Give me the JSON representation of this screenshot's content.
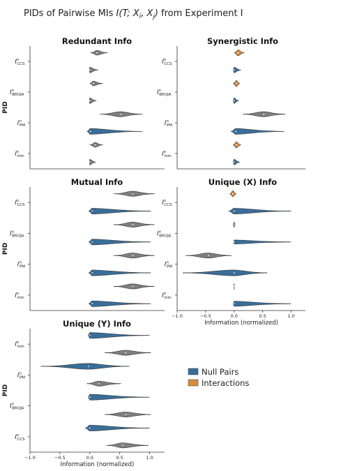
{
  "figure": {
    "title_prefix": "PIDs of Pairwise MIs ",
    "title_math": "I(T; X",
    "title_math_i": "i",
    "title_math_mid": ", X",
    "title_math_j": "j",
    "title_math_end": ")",
    "title_suffix": " from Experiment I"
  },
  "legend": {
    "position": "lower-right",
    "items": [
      {
        "label": "Null Pairs",
        "color": "#3a6e99"
      },
      {
        "label": "Interactions",
        "color": "#d98a3a"
      }
    ]
  },
  "colors": {
    "null": "#3a6e99",
    "interaction": "#d98a3a",
    "gray": "#7f7f7f",
    "axis": "#333333"
  },
  "chart_data": [
    {
      "type": "violin",
      "title": "Redundant Info",
      "ylabel": "PID",
      "xlabel": "",
      "xlim": [
        -1.0,
        1.25
      ],
      "xticks": [],
      "rows": [
        {
          "base": "I",
          "sup": "n",
          "sub": "CCS"
        },
        {
          "base": "I",
          "sup": "n",
          "sub": "BROJA"
        },
        {
          "base": "I",
          "sup": "n",
          "sub": "PM"
        },
        {
          "base": "I",
          "sup": "n",
          "sub": "min"
        }
      ],
      "violins": [
        {
          "row": 0,
          "offset": -1,
          "color": "gray",
          "center": 0.12,
          "min": 0.01,
          "max": 0.3,
          "width": 0.45
        },
        {
          "row": 0,
          "offset": 1,
          "color": "gray",
          "center": 0.0,
          "min": -0.01,
          "max": 0.14,
          "width": 0.7
        },
        {
          "row": 1,
          "offset": -1,
          "color": "gray",
          "center": 0.06,
          "min": 0.0,
          "max": 0.22,
          "width": 0.45
        },
        {
          "row": 1,
          "offset": 1,
          "color": "gray",
          "center": 0.0,
          "min": -0.01,
          "max": 0.11,
          "width": 0.7
        },
        {
          "row": 2,
          "offset": -1,
          "color": "gray",
          "center": 0.52,
          "min": 0.17,
          "max": 0.88,
          "width": 0.55
        },
        {
          "row": 2,
          "offset": 1,
          "color": "null",
          "center": 0.01,
          "min": -0.05,
          "max": 0.88,
          "width": 0.75
        },
        {
          "row": 3,
          "offset": -1,
          "color": "gray",
          "center": 0.09,
          "min": 0.0,
          "max": 0.22,
          "width": 0.45
        },
        {
          "row": 3,
          "offset": 1,
          "color": "gray",
          "center": 0.0,
          "min": -0.01,
          "max": 0.1,
          "width": 0.7
        }
      ]
    },
    {
      "type": "violin",
      "title": "Synergistic Info",
      "ylabel": "",
      "xlabel": "",
      "xlim": [
        -1.0,
        1.25
      ],
      "xticks": [],
      "rows": [
        {
          "base": "I",
          "sup": "n",
          "sub": "CCS"
        },
        {
          "base": "I",
          "sup": "n",
          "sub": "BROJA"
        },
        {
          "base": "I",
          "sup": "n",
          "sub": "PM"
        },
        {
          "base": "I",
          "sup": "n",
          "sub": "min"
        }
      ],
      "violins": [
        {
          "row": 0,
          "offset": -1,
          "color": "interaction",
          "center": 0.07,
          "min": 0.0,
          "max": 0.18,
          "width": 0.8
        },
        {
          "row": 0,
          "offset": 1,
          "color": "null",
          "center": 0.0,
          "min": -0.02,
          "max": 0.12,
          "width": 0.7
        },
        {
          "row": 1,
          "offset": -1,
          "color": "interaction",
          "center": 0.04,
          "min": -0.02,
          "max": 0.1,
          "width": 0.8
        },
        {
          "row": 1,
          "offset": 1,
          "color": "null",
          "center": 0.0,
          "min": -0.02,
          "max": 0.08,
          "width": 0.7
        },
        {
          "row": 2,
          "offset": -1,
          "color": "gray",
          "center": 0.52,
          "min": 0.15,
          "max": 0.9,
          "width": 0.55
        },
        {
          "row": 2,
          "offset": 1,
          "color": "null",
          "center": 0.03,
          "min": -0.06,
          "max": 0.88,
          "width": 0.75
        },
        {
          "row": 3,
          "offset": -1,
          "color": "interaction",
          "center": 0.04,
          "min": -0.02,
          "max": 0.12,
          "width": 0.8
        },
        {
          "row": 3,
          "offset": 1,
          "color": "null",
          "center": 0.0,
          "min": -0.02,
          "max": 0.1,
          "width": 0.7
        }
      ]
    },
    {
      "type": "violin",
      "title": "Mutual Info",
      "ylabel": "PID",
      "xlabel": "",
      "xlim": [
        -1.0,
        1.25
      ],
      "xticks": [],
      "rows": [
        {
          "base": "I",
          "sup": "n",
          "sub": "CCS"
        },
        {
          "base": "I",
          "sup": "n",
          "sub": "BROJA"
        },
        {
          "base": "I",
          "sup": "n",
          "sub": "PM"
        },
        {
          "base": "I",
          "sup": "n",
          "sub": "min"
        }
      ],
      "violins": [
        {
          "row": 0,
          "offset": -1,
          "color": "gray",
          "center": 0.72,
          "min": 0.4,
          "max": 1.08,
          "width": 0.55
        },
        {
          "row": 0,
          "offset": 1,
          "color": "null",
          "center": 0.04,
          "min": -0.02,
          "max": 1.02,
          "width": 0.75
        },
        {
          "row": 1,
          "offset": -1,
          "color": "gray",
          "center": 0.72,
          "min": 0.4,
          "max": 1.08,
          "width": 0.55
        },
        {
          "row": 1,
          "offset": 1,
          "color": "null",
          "center": 0.04,
          "min": -0.02,
          "max": 1.02,
          "width": 0.75
        },
        {
          "row": 2,
          "offset": -1,
          "color": "gray",
          "center": 0.72,
          "min": 0.4,
          "max": 1.08,
          "width": 0.55
        },
        {
          "row": 2,
          "offset": 1,
          "color": "null",
          "center": 0.04,
          "min": -0.02,
          "max": 1.02,
          "width": 0.75
        },
        {
          "row": 3,
          "offset": -1,
          "color": "gray",
          "center": 0.72,
          "min": 0.4,
          "max": 1.08,
          "width": 0.55
        },
        {
          "row": 3,
          "offset": 1,
          "color": "null",
          "center": 0.04,
          "min": -0.02,
          "max": 1.02,
          "width": 0.75
        }
      ]
    },
    {
      "type": "violin",
      "title": "Unique (X) Info",
      "ylabel": "",
      "xlabel": "Information (normalized)",
      "xlim": [
        -1.0,
        1.25
      ],
      "xticks": [
        -1.0,
        -0.5,
        0.0,
        0.5,
        1.0
      ],
      "xticklabels": [
        "−1.0",
        "−0.5",
        "0.0",
        "0.5",
        "1.0"
      ],
      "rows": [
        {
          "base": "I",
          "sup": "n",
          "sub": "CCS"
        },
        {
          "base": "I",
          "sup": "n",
          "sub": "BROJA"
        },
        {
          "base": "I",
          "sup": "n",
          "sub": "PM"
        },
        {
          "base": "I",
          "sup": "n",
          "sub": "min"
        }
      ],
      "violins": [
        {
          "row": 0,
          "offset": -1,
          "color": "interaction",
          "center": -0.02,
          "min": -0.08,
          "max": 0.04,
          "width": 0.8
        },
        {
          "row": 0,
          "offset": 1,
          "color": "null",
          "center": 0.0,
          "min": -0.1,
          "max": 1.0,
          "width": 0.75
        },
        {
          "row": 1,
          "offset": -1,
          "color": "gray",
          "center": 0.0,
          "min": -0.02,
          "max": 0.02,
          "width": 0.6
        },
        {
          "row": 1,
          "offset": 1,
          "color": "null",
          "center": 0.0,
          "min": -0.01,
          "max": 1.0,
          "width": 0.25
        },
        {
          "row": 2,
          "offset": -1,
          "color": "gray",
          "center": -0.45,
          "min": -0.85,
          "max": -0.05,
          "width": 0.55
        },
        {
          "row": 2,
          "offset": 1,
          "color": "null",
          "center": 0.0,
          "min": -0.9,
          "max": 0.58,
          "width": 0.75
        },
        {
          "row": 3,
          "offset": -1,
          "color": "gray",
          "center": 0.0,
          "min": -0.005,
          "max": 0.005,
          "width": 0.9
        },
        {
          "row": 3,
          "offset": 1,
          "color": "null",
          "center": 0.0,
          "min": -0.02,
          "max": 1.0,
          "width": 0.55
        }
      ]
    },
    {
      "type": "violin",
      "title": "Unique (Y) Info",
      "ylabel": "PID",
      "xlabel": "Information (normalized)",
      "xlim": [
        -1.0,
        1.25
      ],
      "xticks": [
        -1.0,
        -0.5,
        0.0,
        0.5,
        1.0
      ],
      "xticklabels": [
        "−1.0",
        "−0.5",
        "0.0",
        "0.5",
        "1.0"
      ],
      "rows": [
        {
          "base": "I",
          "sup": "n",
          "sub": "min"
        },
        {
          "base": "I",
          "sup": "n",
          "sub": "PM"
        },
        {
          "base": "I",
          "sup": "n",
          "sub": "BROJA"
        },
        {
          "base": "I",
          "sup": "n",
          "sub": "CCS"
        }
      ],
      "violins": [
        {
          "row": 0,
          "offset": -1,
          "color": "null",
          "center": 0.0,
          "min": -0.03,
          "max": 1.0,
          "width": 0.75
        },
        {
          "row": 0,
          "offset": 1,
          "color": "gray",
          "center": 0.6,
          "min": 0.25,
          "max": 1.02,
          "width": 0.55
        },
        {
          "row": 1,
          "offset": -1,
          "color": "null",
          "center": -0.02,
          "min": -0.82,
          "max": 0.66,
          "width": 0.75
        },
        {
          "row": 1,
          "offset": 1,
          "color": "gray",
          "center": 0.15,
          "min": -0.05,
          "max": 0.52,
          "width": 0.55
        },
        {
          "row": 2,
          "offset": -1,
          "color": "null",
          "center": 0.0,
          "min": -0.03,
          "max": 1.0,
          "width": 0.75
        },
        {
          "row": 2,
          "offset": 1,
          "color": "gray",
          "center": 0.6,
          "min": 0.25,
          "max": 1.02,
          "width": 0.55
        },
        {
          "row": 3,
          "offset": -1,
          "color": "null",
          "center": 0.0,
          "min": -0.08,
          "max": 1.0,
          "width": 0.75
        },
        {
          "row": 3,
          "offset": 1,
          "color": "gray",
          "center": 0.55,
          "min": 0.28,
          "max": 0.98,
          "width": 0.55
        }
      ]
    }
  ]
}
